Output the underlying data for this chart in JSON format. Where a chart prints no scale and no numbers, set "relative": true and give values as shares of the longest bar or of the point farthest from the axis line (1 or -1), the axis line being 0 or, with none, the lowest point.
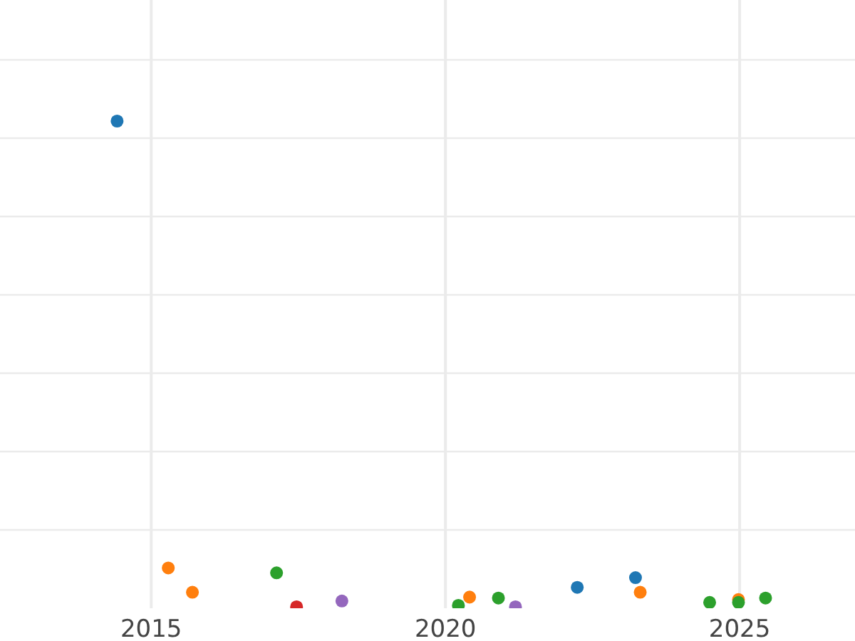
{
  "chart_data": {
    "type": "scatter",
    "relative": true,
    "grid": true,
    "marker": "circle",
    "xlim": [
      2012.43,
      2026.96
    ],
    "xticks": [
      2015,
      2020,
      2025
    ],
    "series": [
      {
        "color": "#1f77b4",
        "x": [
          2014.42,
          2022.24,
          2023.23
        ],
        "values": [
          1.0,
          0.04,
          0.06
        ]
      },
      {
        "color": "#ff7f0e",
        "x": [
          2015.29,
          2015.7,
          2020.41,
          2023.31,
          2024.98
        ],
        "values": [
          0.08,
          0.03,
          0.02,
          0.03,
          0.015
        ]
      },
      {
        "color": "#2ca02c",
        "x": [
          2017.13,
          2020.22,
          2020.9,
          2024.49,
          2024.98,
          2025.44
        ],
        "values": [
          0.07,
          0.003,
          0.018,
          0.009,
          0.009,
          0.018
        ]
      },
      {
        "color": "#d62728",
        "x": [
          2017.47
        ],
        "values": [
          0
        ]
      },
      {
        "color": "#9467bd",
        "x": [
          2018.24,
          2021.19
        ],
        "values": [
          0.012,
          0
        ]
      }
    ]
  }
}
